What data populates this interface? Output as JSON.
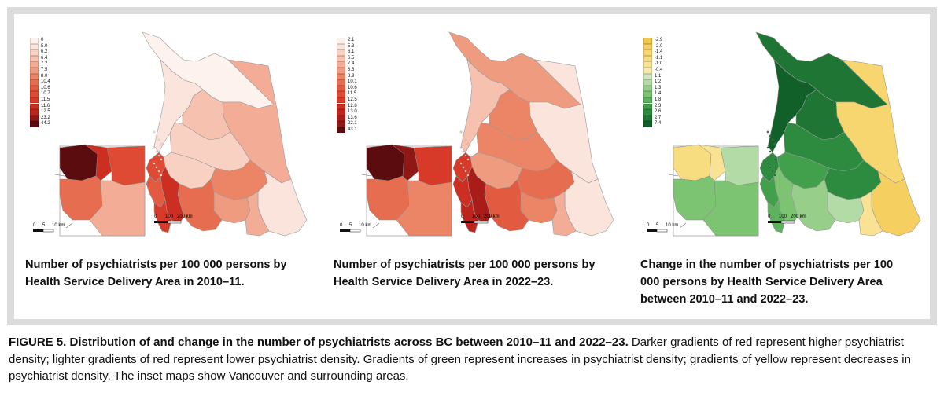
{
  "panels": [
    {
      "title": "Number of psychiatrists per 100 000 persons by Health Service Delivery Area in 2010–11.",
      "legend": [
        {
          "label": "0",
          "color": "#fdf2ee"
        },
        {
          "label": "5.0",
          "color": "#fbe4dc"
        },
        {
          "label": "6.2",
          "color": "#f8d1c3"
        },
        {
          "label": "6.4",
          "color": "#f6c1ae"
        },
        {
          "label": "7.2",
          "color": "#f3ac95"
        },
        {
          "label": "7.5",
          "color": "#ef9b80"
        },
        {
          "label": "8.0",
          "color": "#eb8566"
        },
        {
          "label": "10.4",
          "color": "#e66d4f"
        },
        {
          "label": "10.6",
          "color": "#e25a3f"
        },
        {
          "label": "10.7",
          "color": "#de4a33"
        },
        {
          "label": "11.5",
          "color": "#d73a29"
        },
        {
          "label": "11.6",
          "color": "#cc2e22"
        },
        {
          "label": "12.5",
          "color": "#bd241c"
        },
        {
          "label": "23.2",
          "color": "#8f1715"
        },
        {
          "label": "44.2",
          "color": "#5a0c0e"
        }
      ],
      "inset_scale": {
        "labels": [
          "0",
          "5",
          "10 km"
        ]
      },
      "main_scale": {
        "labels": [
          "0",
          "100",
          "200 km"
        ]
      },
      "regions": {
        "north": "#fdf2ee",
        "northeast": "#f3ac95",
        "northwest_coast": "#fbe4dc",
        "central": "#f8d1c3",
        "cariboo": "#f8d1c3",
        "island_north": "#de4a33",
        "island_central": "#e25a3f",
        "island_south": "#d73a29",
        "lower_mainland": "#cc2e22",
        "fraser": "#e66d4f",
        "thompson": "#eb8566",
        "okanagan": "#ef9b80",
        "kootenay_east": "#fbe4dc",
        "kootenay_west": "#f3ac95",
        "north_central": "#f6c1ae",
        "inset_van": "#5a0c0e",
        "inset_north": "#cc2e22",
        "inset_east": "#de4a33",
        "inset_south": "#e66d4f",
        "inset_se": "#f3ac95"
      }
    },
    {
      "title": "Number of psychiatrists per 100 000 persons by Health Service Delivery Area in 2022–23.",
      "legend": [
        {
          "label": "2.1",
          "color": "#fdf2ee"
        },
        {
          "label": "5.3",
          "color": "#fbe4dc"
        },
        {
          "label": "6.1",
          "color": "#f8d1c3"
        },
        {
          "label": "6.5",
          "color": "#f6c1ae"
        },
        {
          "label": "7.4",
          "color": "#f3ac95"
        },
        {
          "label": "8.6",
          "color": "#ef9b80"
        },
        {
          "label": "8.9",
          "color": "#eb8566"
        },
        {
          "label": "10.1",
          "color": "#e66d4f"
        },
        {
          "label": "10.6",
          "color": "#e25a3f"
        },
        {
          "label": "11.5",
          "color": "#de4a33"
        },
        {
          "label": "12.5",
          "color": "#d73a29"
        },
        {
          "label": "12.8",
          "color": "#cc2e22"
        },
        {
          "label": "13.0",
          "color": "#bd241c"
        },
        {
          "label": "13.6",
          "color": "#a91d19"
        },
        {
          "label": "22.1",
          "color": "#8f1715"
        },
        {
          "label": "43.1",
          "color": "#5a0c0e"
        }
      ],
      "inset_scale": {
        "labels": [
          "0",
          "5",
          "10 km"
        ]
      },
      "main_scale": {
        "labels": [
          "0",
          "100",
          "200 km"
        ]
      },
      "regions": {
        "north": "#ef9b80",
        "northeast": "#fbe4dc",
        "northwest_coast": "#f6c1ae",
        "central": "#eb8566",
        "cariboo": "#ef9b80",
        "island_north": "#d73a29",
        "island_central": "#cc2e22",
        "island_south": "#bd241c",
        "lower_mainland": "#a91d19",
        "fraser": "#e25a3f",
        "thompson": "#e66d4f",
        "okanagan": "#eb8566",
        "kootenay_east": "#fbe4dc",
        "kootenay_west": "#f3ac95",
        "north_central": "#eb8566",
        "inset_van": "#5a0c0e",
        "inset_north": "#8f1715",
        "inset_east": "#d73a29",
        "inset_south": "#e66d4f",
        "inset_se": "#eb8566"
      }
    },
    {
      "title": "Change in the number of psychiatrists per 100 000 persons by Health Service Delivery Area between 2010–11 and 2022–23.",
      "legend": [
        {
          "label": "-2.9",
          "color": "#f3c74a"
        },
        {
          "label": "-2.0",
          "color": "#f5cf5f"
        },
        {
          "label": "-1.4",
          "color": "#f7d66f"
        },
        {
          "label": "-1.1",
          "color": "#f8dc80"
        },
        {
          "label": "-1.0",
          "color": "#f9e294"
        },
        {
          "label": "-0.4",
          "color": "#fae9ac"
        },
        {
          "label": "1.1",
          "color": "#cfe7c3"
        },
        {
          "label": "1.2",
          "color": "#b3dba6"
        },
        {
          "label": "1.3",
          "color": "#97cf8a"
        },
        {
          "label": "1.4",
          "color": "#7cc372"
        },
        {
          "label": "1.8",
          "color": "#5db35d"
        },
        {
          "label": "2.3",
          "color": "#42a04c"
        },
        {
          "label": "2.6",
          "color": "#2d8b3f"
        },
        {
          "label": "2.7",
          "color": "#1f7634"
        },
        {
          "label": "7.4",
          "color": "#115f29"
        }
      ],
      "inset_scale": {
        "labels": [
          "0",
          "5",
          "10 km"
        ]
      },
      "main_scale": {
        "labels": [
          "0",
          "100",
          "200 km"
        ]
      },
      "regions": {
        "north": "#1f7634",
        "northeast": "#f7d66f",
        "northwest_coast": "#115f29",
        "central": "#2d8b3f",
        "cariboo": "#42a04c",
        "island_north": "#2d8b3f",
        "island_central": "#42a04c",
        "island_south": "#5db35d",
        "lower_mainland": "#7cc372",
        "fraser": "#97cf8a",
        "thompson": "#2d8b3f",
        "okanagan": "#b3dba6",
        "kootenay_east": "#f5cf5f",
        "kootenay_west": "#f9e294",
        "north_central": "#1f7634",
        "inset_van": "#f8dc80",
        "inset_north": "#f9e294",
        "inset_east": "#b3dba6",
        "inset_south": "#7cc372",
        "inset_se": "#7cc372"
      }
    }
  ],
  "caption": {
    "lead": "FIGURE 5. Distribution of and change in the number of psychiatrists across BC between 2010–11 and 2022–23.",
    "body": " Darker gradients of red represent higher psychiatrist density; lighter gradients of red represent lower psychiatrist density. Gradients of green represent increases in psychiatrist density; gradients of yellow represent decreases in psychiatrist density. The inset maps show Vancouver and surrounding areas."
  }
}
